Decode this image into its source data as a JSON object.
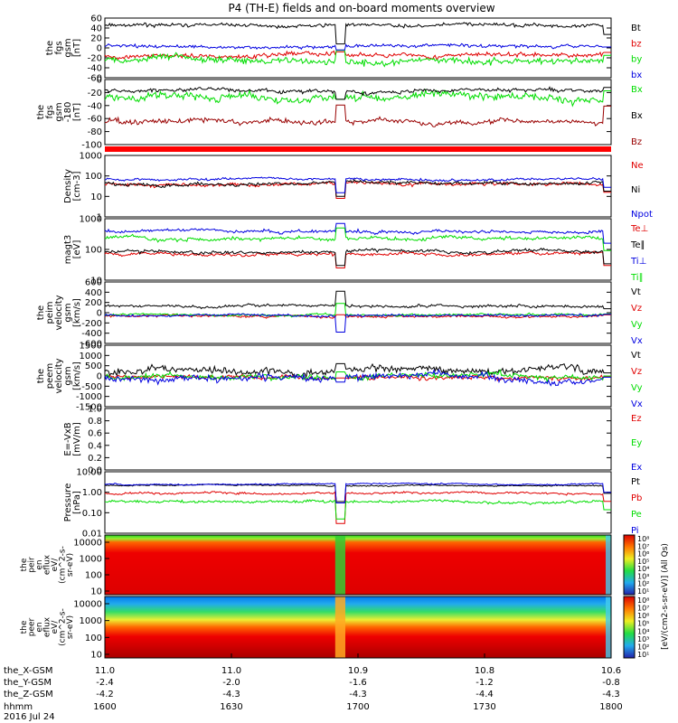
{
  "title": "P4 (TH-E) fields and on-board moments overview",
  "date": "2016 Jul 24",
  "colors": {
    "black": "#000000",
    "red": "#e00000",
    "green": "#00dd00",
    "blue": "#0000e0",
    "darkred": "#990000"
  },
  "chart_data": {
    "type": "line",
    "x_axis": {
      "label": "hhmm",
      "ticks": [
        "1600",
        "1630",
        "1700",
        "1730",
        "1800"
      ],
      "ephemeris": [
        {
          "name": "the_X-GSM",
          "values": [
            "11.0",
            "11.0",
            "10.9",
            "10.8",
            "10.6"
          ]
        },
        {
          "name": "the_Y-GSM",
          "values": [
            "-2.4",
            "-2.0",
            "-1.6",
            "-1.2",
            "-0.8"
          ]
        },
        {
          "name": "the_Z-GSM",
          "values": [
            "-4.2",
            "-4.3",
            "-4.3",
            "-4.4",
            "-4.3"
          ]
        }
      ]
    },
    "panels": [
      {
        "id": "fgs",
        "ylabel": [
          "the",
          "fgs",
          "gsm",
          "[nT]"
        ],
        "ylim": [
          -60,
          60
        ],
        "ticks": [
          "60",
          "40",
          "20",
          "0",
          "-20",
          "-40",
          "-60"
        ],
        "series": [
          {
            "name": "Bt",
            "color": "black",
            "base": 45,
            "noise": 3,
            "gap": 8
          },
          {
            "name": "bz",
            "color": "red",
            "base": -15,
            "noise": 4,
            "gap": -8
          },
          {
            "name": "by",
            "color": "green",
            "base": -25,
            "noise": 6,
            "gap": -5
          },
          {
            "name": "bx",
            "color": "blue",
            "base": 3,
            "noise": 3,
            "gap": -4
          }
        ]
      },
      {
        "id": "fgs_angle",
        "ylabel": [
          "the",
          "fgs",
          "gsm",
          "-180",
          "[nT]"
        ],
        "ylim": [
          -110,
          5
        ],
        "ticks": [
          "0",
          "-20",
          "-40",
          "-60",
          "-80",
          "-100"
        ],
        "series": [
          {
            "name": "Bx",
            "color": "green",
            "base": -25,
            "noise": 6,
            "gap": -30
          },
          {
            "name": "Bx",
            "color": "black",
            "base": -15,
            "noise": 3,
            "gap": -30
          },
          {
            "name": "Bz",
            "color": "darkred",
            "base": -70,
            "noise": 4,
            "gap": -40
          }
        ]
      },
      {
        "id": "density",
        "ylabel": [
          "Density",
          "[cm-3]"
        ],
        "log": true,
        "ylim": [
          1,
          1000
        ],
        "ticks": [
          "1000",
          "100",
          "10",
          "1"
        ],
        "series": [
          {
            "name": "Ne",
            "color": "red",
            "base": 40,
            "noise": 0.08,
            "gap": 8
          },
          {
            "name": "Ni",
            "color": "black",
            "base": 45,
            "noise": 0.08,
            "gap": 10
          },
          {
            "name": "Npot",
            "color": "blue",
            "base": 70,
            "noise": 0.06,
            "gap": 15
          }
        ]
      },
      {
        "id": "temperature",
        "ylabel": [
          "magt3",
          "[eV]"
        ],
        "log": true,
        "ylim": [
          10,
          1000
        ],
        "ticks": [
          "1000",
          "100",
          "10"
        ],
        "series": [
          {
            "name": "Te⊥",
            "color": "red",
            "base": 75,
            "noise": 0.05,
            "gap": 25
          },
          {
            "name": "Te∥",
            "color": "black",
            "base": 85,
            "noise": 0.05,
            "gap": 30
          },
          {
            "name": "Ti⊥",
            "color": "blue",
            "base": 400,
            "noise": 0.05,
            "gap": 700
          },
          {
            "name": "Ti∥",
            "color": "green",
            "base": 230,
            "noise": 0.06,
            "gap": 500
          }
        ]
      },
      {
        "id": "peim_velocity",
        "ylabel": [
          "the",
          "peim",
          "velocity",
          "gsm",
          "[km/s]"
        ],
        "ylim": [
          -600,
          600
        ],
        "ticks": [
          "600",
          "400",
          "200",
          "0",
          "-200",
          "-400",
          "-600"
        ],
        "series": [
          {
            "name": "Vt",
            "color": "black",
            "base": 130,
            "noise": 25,
            "gap": 420
          },
          {
            "name": "Vz",
            "color": "red",
            "base": -70,
            "noise": 20,
            "gap": -40
          },
          {
            "name": "Vy",
            "color": "green",
            "base": -40,
            "noise": 20,
            "gap": 180
          },
          {
            "name": "Vx",
            "color": "blue",
            "base": -50,
            "noise": 20,
            "gap": -380
          }
        ]
      },
      {
        "id": "peem_velocity",
        "ylabel": [
          "the",
          "peem",
          "velocity",
          "gsm",
          "[km/s]"
        ],
        "ylim": [
          -1500,
          1500
        ],
        "ticks": [
          "1500",
          "1000",
          "500",
          "0",
          "-500",
          "-1000",
          "-1500"
        ],
        "series": [
          {
            "name": "Vt",
            "color": "black",
            "base": 250,
            "noise": 150,
            "gap": 600
          },
          {
            "name": "Vz",
            "color": "red",
            "base": -50,
            "noise": 90,
            "gap": -100
          },
          {
            "name": "Vy",
            "color": "green",
            "base": 0,
            "noise": 110,
            "gap": 200
          },
          {
            "name": "Vx",
            "color": "blue",
            "base": -100,
            "noise": 140,
            "gap": -300
          }
        ]
      },
      {
        "id": "efield",
        "ylabel": [
          "E=-VxB",
          "[mV/m]"
        ],
        "ylim": [
          0,
          1
        ],
        "ticks": [
          "1.0",
          "0.8",
          "0.6",
          "0.4",
          "0.2",
          "0.0"
        ],
        "series": [
          {
            "name": "Ez",
            "color": "red",
            "empty": true
          },
          {
            "name": "Ey",
            "color": "green",
            "empty": true
          },
          {
            "name": "Ex",
            "color": "blue",
            "empty": true
          }
        ]
      },
      {
        "id": "pressure",
        "ylabel": [
          "Pressure",
          "[nPa]"
        ],
        "log": true,
        "ylim": [
          0.01,
          10
        ],
        "ticks": [
          "10.00",
          "1.00",
          "0.10",
          "0.01"
        ],
        "series": [
          {
            "name": "Pt",
            "color": "black",
            "base": 2.2,
            "noise": 0.03,
            "gap": 0.35
          },
          {
            "name": "Pb",
            "color": "red",
            "base": 0.9,
            "noise": 0.05,
            "gap": 0.03
          },
          {
            "name": "Pe",
            "color": "green",
            "base": 0.35,
            "noise": 0.06,
            "gap": 0.05
          },
          {
            "name": "Pi",
            "color": "blue",
            "base": 2.5,
            "noise": 0.03,
            "gap": 0.3
          }
        ]
      }
    ],
    "spectrograms": [
      {
        "id": "peir_eflux",
        "ylabel": [
          "the",
          "peir",
          "en",
          "eflux",
          "eV/",
          "(cm^2-s-",
          "sr-eV)"
        ],
        "ticks": [
          "10000",
          "1000",
          "100",
          "10"
        ]
      },
      {
        "id": "peer_eflux",
        "ylabel": [
          "the",
          "peer",
          "en",
          "eflux",
          "eV/",
          "(cm^2-s-",
          "sr-eV)"
        ],
        "ticks": [
          "10000",
          "1000",
          "100",
          "10"
        ]
      }
    ],
    "colorbar": {
      "label": "[eV/(cm2-s-sr-eV)] (All Qs)",
      "ticks": [
        "10⁸",
        "10⁷",
        "10⁶",
        "10⁵",
        "10⁴",
        "10³",
        "10²",
        "10¹"
      ]
    }
  }
}
